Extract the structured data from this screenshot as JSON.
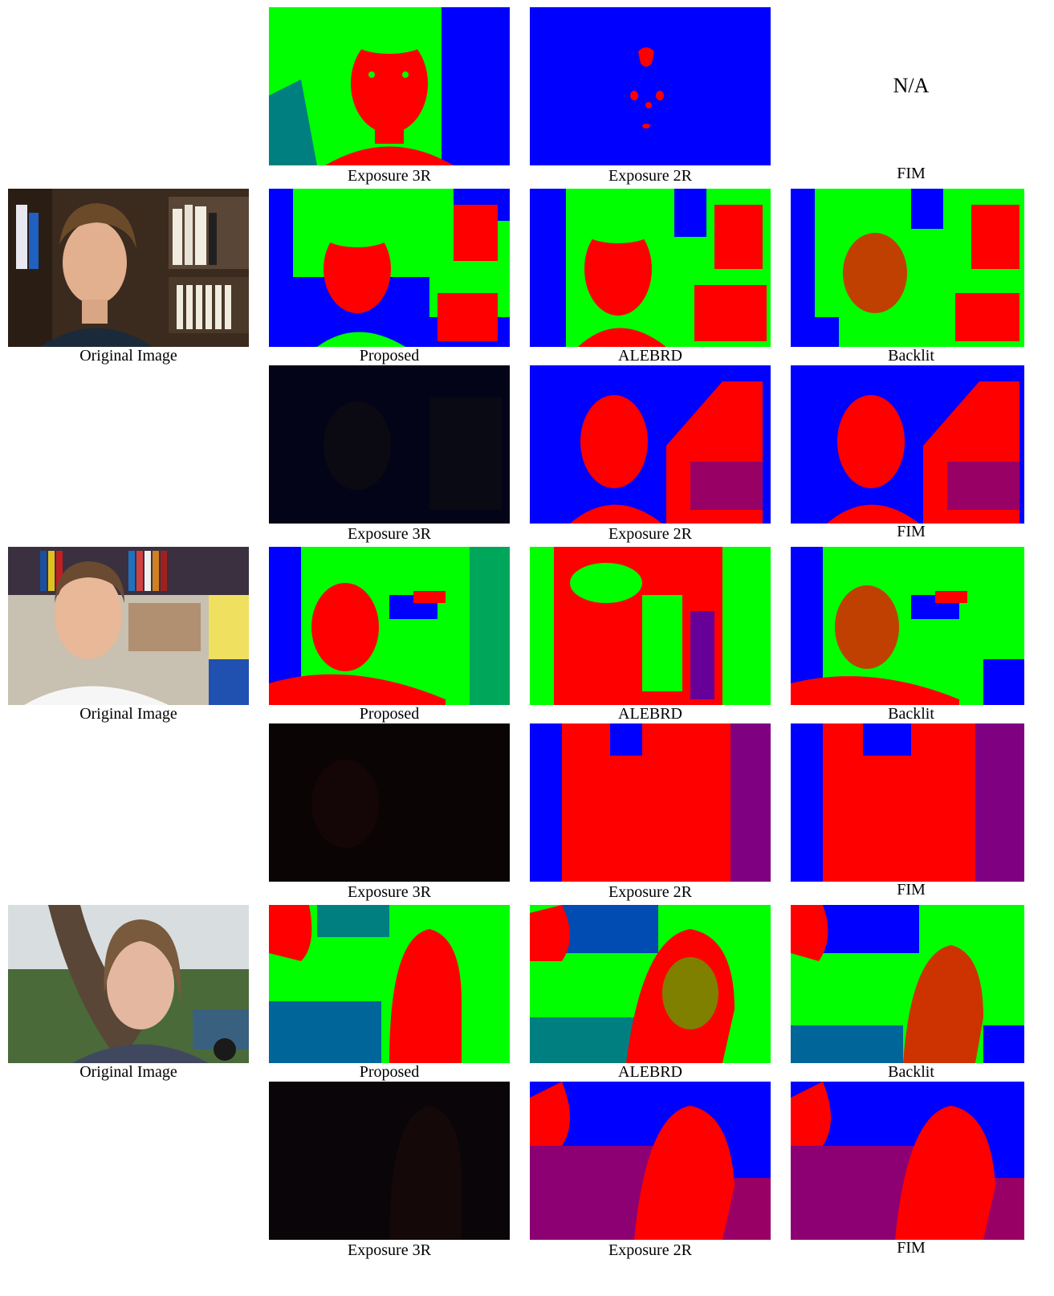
{
  "figure": {
    "top_row": {
      "panels": [
        {
          "caption": "Exposure 3R",
          "scheme": "exp3r_bright"
        },
        {
          "caption": "Exposure 2R",
          "scheme": "exp2r_blue"
        },
        {
          "caption": "FIM",
          "placeholder": "N/A"
        }
      ]
    },
    "groups": [
      {
        "original_caption": "Original Image",
        "photo": "bookshelf-man",
        "row1": [
          {
            "caption": "Proposed",
            "scheme": "proposed"
          },
          {
            "caption": "ALEBRD",
            "scheme": "alebrd"
          },
          {
            "caption": "Backlit",
            "scheme": "backlit"
          }
        ],
        "row2": [
          {
            "caption": "Exposure 3R",
            "scheme": "dark"
          },
          {
            "caption": "Exposure 2R",
            "scheme": "redblue"
          },
          {
            "caption": "FIM",
            "scheme": "redblue"
          }
        ]
      },
      {
        "original_caption": "Original Image",
        "photo": "library-man",
        "row1": [
          {
            "caption": "Proposed",
            "scheme": "proposed"
          },
          {
            "caption": "ALEBRD",
            "scheme": "alebrd"
          },
          {
            "caption": "Backlit",
            "scheme": "backlit"
          }
        ],
        "row2": [
          {
            "caption": "Exposure 3R",
            "scheme": "dark"
          },
          {
            "caption": "Exposure 2R",
            "scheme": "redblue"
          },
          {
            "caption": "FIM",
            "scheme": "redblue"
          }
        ]
      },
      {
        "original_caption": "Original Image",
        "photo": "outdoor-woman",
        "row1": [
          {
            "caption": "Proposed",
            "scheme": "proposed"
          },
          {
            "caption": "ALEBRD",
            "scheme": "alebrd"
          },
          {
            "caption": "Backlit",
            "scheme": "backlit"
          }
        ],
        "row2": [
          {
            "caption": "Exposure 3R",
            "scheme": "dark"
          },
          {
            "caption": "Exposure 2R",
            "scheme": "redblue"
          },
          {
            "caption": "FIM",
            "scheme": "redblue"
          }
        ]
      }
    ],
    "colors": {
      "red": "#ff0000",
      "green": "#00ff00",
      "blue": "#0000ff",
      "dark": "#040418"
    }
  }
}
